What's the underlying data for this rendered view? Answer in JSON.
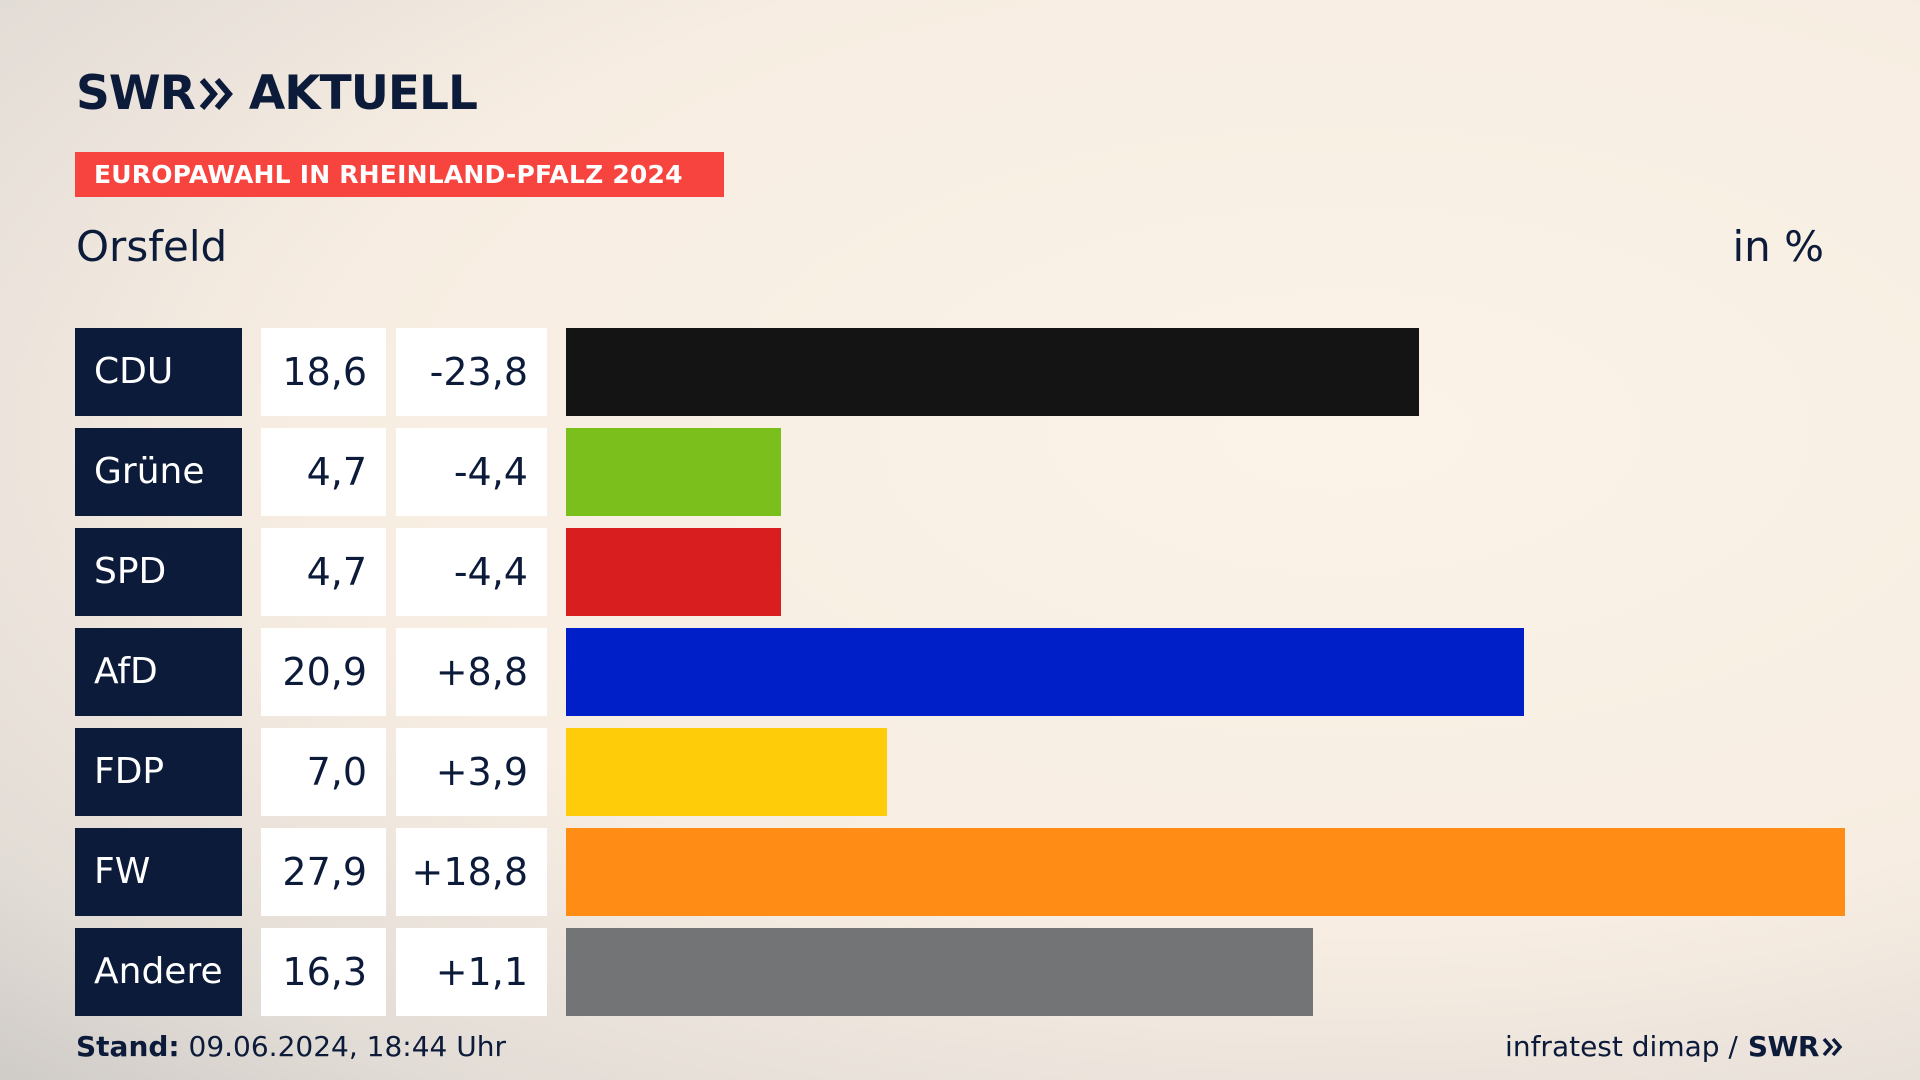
{
  "brand": {
    "swr": "SWR",
    "aktuell": "AKTUELL",
    "chevron_icon": "double-chevron-right-icon"
  },
  "banner": "EUROPAWAHL IN RHEINLAND-PFALZ 2024",
  "location": "Orsfeld",
  "unit": "in %",
  "chart_data": {
    "type": "bar",
    "orientation": "horizontal",
    "title": "EUROPAWAHL IN RHEINLAND-PFALZ 2024",
    "subtitle": "Orsfeld",
    "unit_label": "in %",
    "categories": [
      "CDU",
      "Grüne",
      "SPD",
      "AfD",
      "FDP",
      "FW",
      "Andere"
    ],
    "values": [
      18.6,
      4.7,
      4.7,
      20.9,
      7.0,
      27.9,
      16.3
    ],
    "value_labels": [
      "18,6",
      "4,7",
      "4,7",
      "20,9",
      "7,0",
      "27,9",
      "16,3"
    ],
    "diff_labels": [
      "-23,8",
      "-4,4",
      "-4,4",
      "+8,8",
      "+3,9",
      "+18,8",
      "+1,1"
    ],
    "diffs": [
      -23.8,
      -4.4,
      -4.4,
      8.8,
      3.9,
      18.8,
      1.1
    ],
    "colors": [
      "#141414",
      "#7abf1c",
      "#d81e1e",
      "#001fc8",
      "#ffcc0a",
      "#ff8c15",
      "#737476"
    ],
    "xlim": [
      0,
      27.9
    ],
    "grid": false,
    "legend": "none"
  },
  "footer": {
    "stand_label": "Stand:",
    "stand_value": " 09.06.2024, 18:44 Uhr",
    "source": "infratest dimap /",
    "source_logo": "SWR"
  }
}
